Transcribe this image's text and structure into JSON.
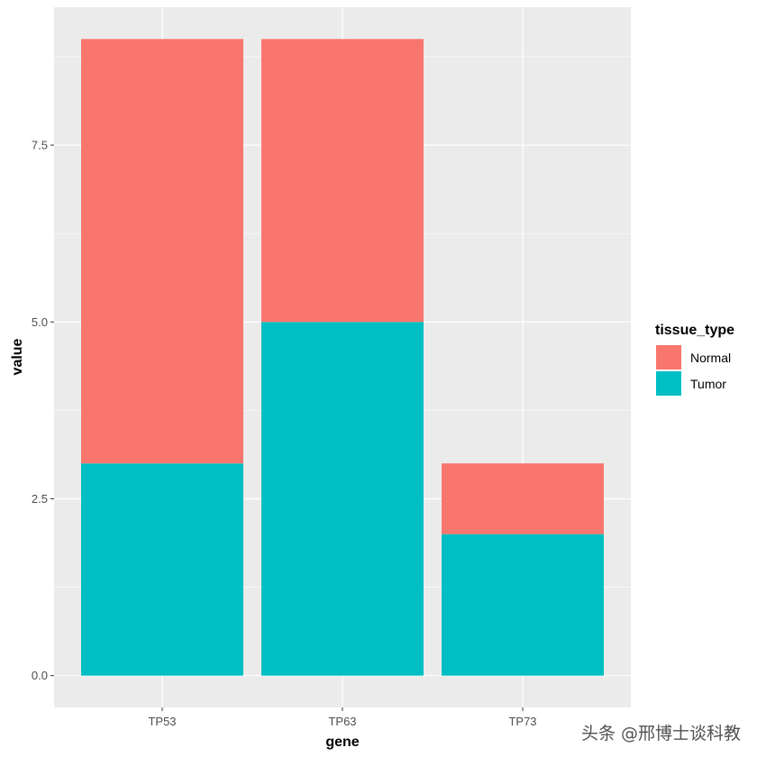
{
  "chart_data": {
    "type": "bar",
    "stacked": true,
    "categories": [
      "TP53",
      "TP63",
      "TP73"
    ],
    "series": [
      {
        "name": "Normal",
        "values": [
          6,
          4,
          1
        ],
        "color": "#F8766D"
      },
      {
        "name": "Tumor",
        "values": [
          3,
          5,
          2
        ],
        "color": "#00BFC4"
      }
    ],
    "xlabel": "gene",
    "ylabel": "value",
    "ylim": [
      -0.45,
      9.45
    ],
    "yticks": [
      0,
      2.5,
      5,
      7.5
    ],
    "ytick_labels": [
      "0.0",
      "2.5",
      "5.0",
      "7.5"
    ],
    "legend_title": "tissue_type",
    "legend_position": "right",
    "panel_background": "#EBEBEB",
    "grid": true
  },
  "watermark": "头条 @邢博士谈科教"
}
